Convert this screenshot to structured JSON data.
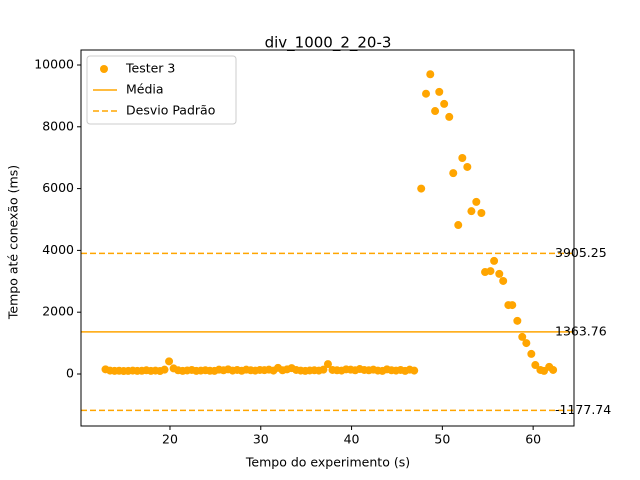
{
  "chart_data": {
    "type": "scatter",
    "title": "div_1000_2_20-3",
    "x_label": "Tempo do experimento (s)",
    "y_label": "Tempo até conexão (ms)",
    "xlim": [
      10.2,
      64.5
    ],
    "ylim": [
      -1683,
      10485
    ],
    "xticks": [
      20,
      30,
      40,
      50,
      60
    ],
    "yticks": [
      0,
      2000,
      4000,
      6000,
      8000,
      10000
    ],
    "legend": "upper left",
    "series": [
      {
        "name": "Tester 3",
        "color": "#ffa500",
        "x": [
          12.9,
          13.4,
          13.9,
          14.4,
          14.9,
          15.4,
          15.9,
          16.4,
          16.9,
          17.4,
          17.9,
          18.4,
          18.9,
          19.4,
          19.9,
          20.4,
          20.9,
          21.4,
          21.9,
          22.4,
          22.9,
          23.4,
          23.9,
          24.4,
          24.9,
          25.4,
          25.9,
          26.4,
          26.9,
          27.4,
          27.9,
          28.4,
          28.9,
          29.4,
          29.9,
          30.4,
          30.9,
          31.4,
          31.9,
          32.4,
          32.9,
          33.4,
          33.9,
          34.4,
          34.9,
          35.4,
          35.9,
          36.4,
          36.9,
          37.4,
          37.9,
          38.4,
          38.9,
          39.4,
          39.9,
          40.4,
          40.9,
          41.4,
          41.9,
          42.4,
          42.9,
          43.4,
          43.9,
          44.4,
          44.9,
          45.4,
          45.9,
          46.4,
          46.9,
          47.67,
          48.2,
          48.67,
          49.2,
          49.66,
          50.2,
          50.76,
          51.2,
          51.75,
          52.2,
          52.75,
          53.2,
          53.74,
          54.3,
          54.7,
          55.3,
          55.7,
          56.27,
          56.7,
          57.27,
          57.7,
          58.26,
          58.8,
          59.25,
          59.8,
          60.24,
          60.8,
          61.2,
          61.77,
          62.2
        ],
        "values": [
          150,
          110,
          100,
          105,
          95,
          100,
          110,
          100,
          105,
          120,
          100,
          110,
          95,
          140,
          410,
          180,
          120,
          100,
          115,
          130,
          100,
          110,
          120,
          105,
          100,
          140,
          120,
          150,
          110,
          130,
          105,
          140,
          120,
          110,
          130,
          125,
          140,
          110,
          200,
          120,
          150,
          190,
          130,
          110,
          100,
          115,
          120,
          110,
          140,
          320,
          130,
          120,
          110,
          150,
          140,
          120,
          160,
          130,
          120,
          140,
          110,
          100,
          150,
          120,
          110,
          130,
          100,
          140,
          110,
          6000,
          9070,
          9700,
          8510,
          9130,
          8740,
          8320,
          6500,
          4820,
          6990,
          6700,
          5270,
          5570,
          5210,
          3300,
          3330,
          3660,
          3240,
          3010,
          2230,
          2230,
          1720,
          1200,
          1000,
          650,
          290,
          130,
          100,
          230,
          130
        ]
      }
    ],
    "hlines": [
      {
        "name": "Média",
        "color": "#ffa500",
        "style": "solid",
        "values": [
          1363.76
        ]
      },
      {
        "name": "Desvio Padrão",
        "color": "#ffa500",
        "style": "dashed",
        "values": [
          3905.25,
          -1177.74
        ]
      }
    ]
  }
}
